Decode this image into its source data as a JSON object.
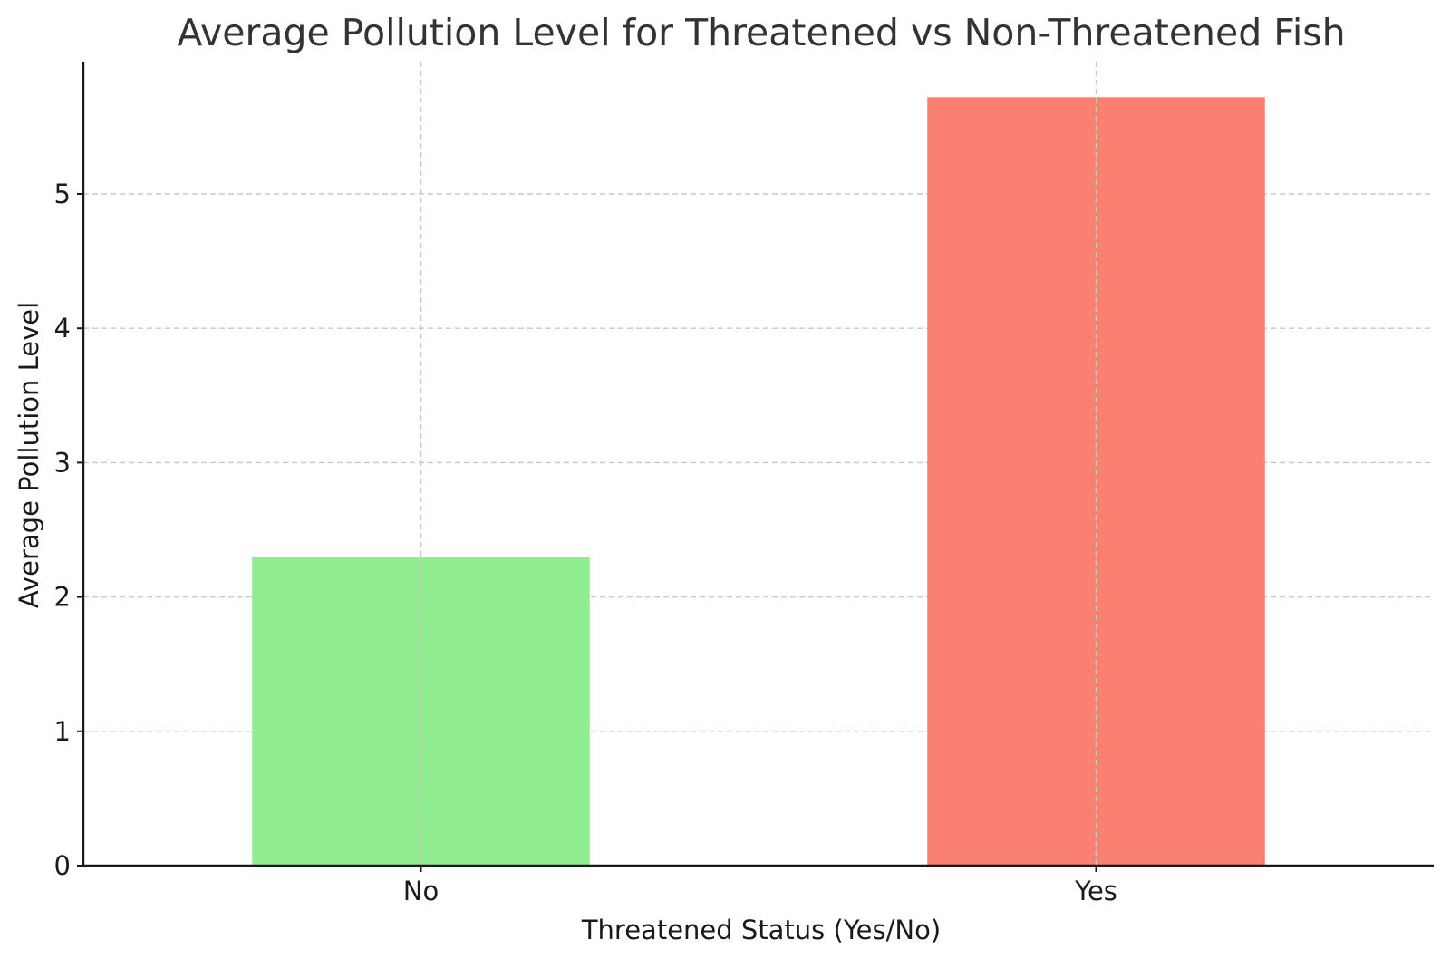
{
  "chart_data": {
    "type": "bar",
    "title": "Average Pollution Level for Threatened vs Non-Threatened Fish",
    "xlabel": "Threatened Status (Yes/No)",
    "ylabel": "Average Pollution Level",
    "categories": [
      "No",
      "Yes"
    ],
    "values": [
      2.3,
      5.72
    ],
    "bar_colors": [
      "#90ee90",
      "#fa8072"
    ],
    "ylim": [
      0,
      6
    ],
    "yticks": [
      0,
      1,
      2,
      3,
      4,
      5
    ],
    "ytick_labels": [
      "0",
      "1",
      "2",
      "3",
      "4",
      "5"
    ],
    "grid": true,
    "legend": false
  }
}
